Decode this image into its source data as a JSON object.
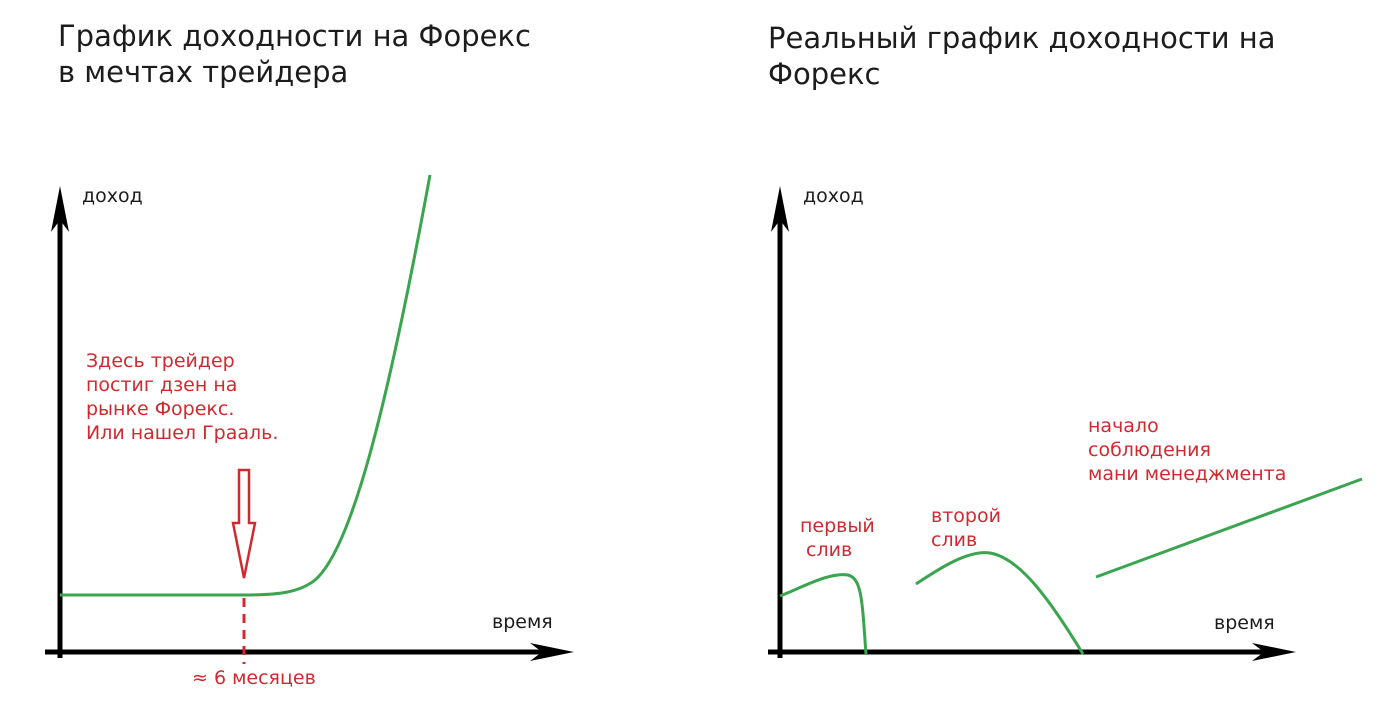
{
  "left_panel": {
    "title_line1": "График доходности на Форекс",
    "title_line2": "в мечтах трейдера",
    "y_label": "доход",
    "x_label": "время",
    "annotation": [
      "Здесь трейдер",
      "постиг дзен на",
      "рынке Форекс.",
      "Или нашел Грааль."
    ],
    "marker_label": "≈ 6 месяцев"
  },
  "right_panel": {
    "title_line1": "Реальный график доходности на",
    "title_line2": "Форекс",
    "y_label": "доход",
    "x_label": "время",
    "note_first": [
      "первый",
      "слив"
    ],
    "note_second": [
      "второй",
      "слив"
    ],
    "note_third": [
      "начало",
      "соблюдения",
      "мани менеджмента"
    ]
  },
  "colors": {
    "axis": "#000000",
    "curve": "#3aa44f",
    "annotation": "#d02a30",
    "text": "#1c1c1c"
  }
}
